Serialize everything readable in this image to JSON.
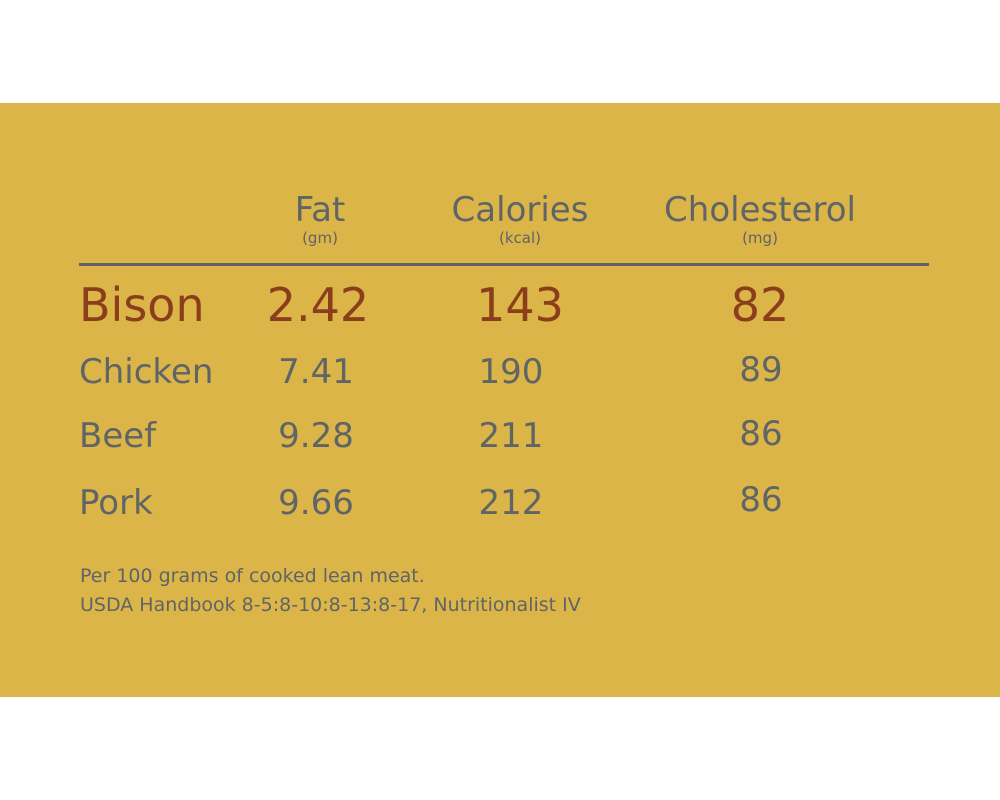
{
  "chart_data": {
    "type": "table",
    "columns": [
      {
        "name": "Fat",
        "unit": "(gm)"
      },
      {
        "name": "Calories",
        "unit": "(kcal)"
      },
      {
        "name": "Cholesterol",
        "unit": "(mg)"
      }
    ],
    "rows": [
      {
        "label": "Bison",
        "values": [
          "2.42",
          "143",
          "82"
        ],
        "highlight": true
      },
      {
        "label": "Chicken",
        "values": [
          "7.41",
          "190",
          "89"
        ]
      },
      {
        "label": "Beef",
        "values": [
          "9.28",
          "211",
          "86"
        ]
      },
      {
        "label": "Pork",
        "values": [
          "9.66",
          "212",
          "86"
        ]
      }
    ],
    "notes": [
      "Per 100 grams of cooked lean meat.",
      "USDA Handbook 8-5:8-10:8-13:8-17, Nutritionalist IV"
    ]
  },
  "colors": {
    "background": "#dcb548",
    "text": "#5f6467",
    "highlight": "#8b3e1c"
  }
}
